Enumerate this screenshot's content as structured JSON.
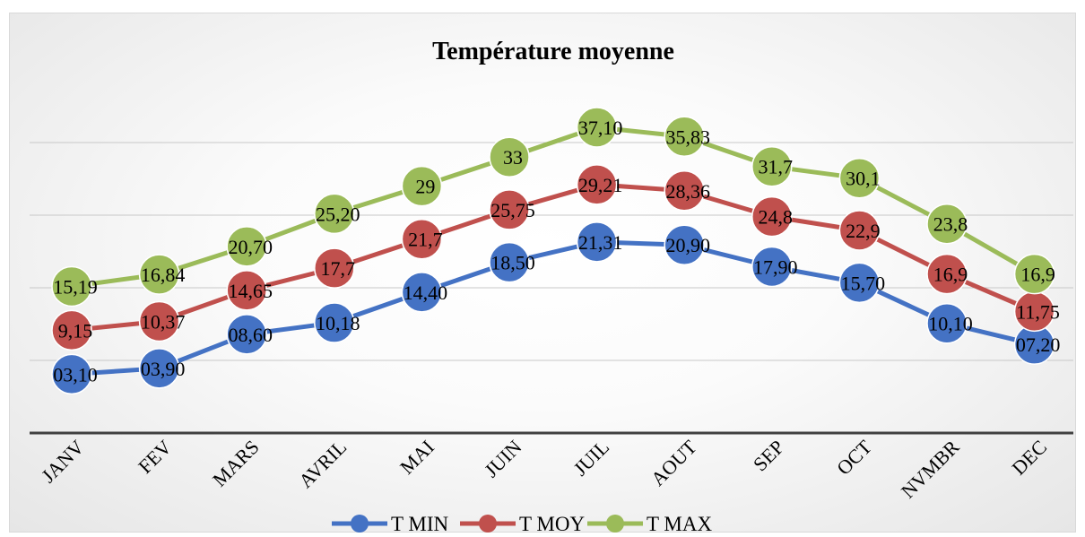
{
  "chart_data": {
    "type": "line",
    "title": "Température moyenne",
    "categories": [
      "JANV",
      "FEV",
      "MARS",
      "AVRIL",
      "MAI",
      "JUIN",
      "JUIL",
      "AOUT",
      "SEP",
      "OCT",
      "NVMBR",
      "DEC"
    ],
    "ylim": [
      -5,
      45
    ],
    "grid": true,
    "legend": "bottom",
    "series": [
      {
        "name": "T MIN",
        "color": "#4472c4",
        "values": [
          3.1,
          3.9,
          8.6,
          10.18,
          14.4,
          18.5,
          21.31,
          20.9,
          17.9,
          15.7,
          10.1,
          7.2
        ],
        "labels": [
          "03,10",
          "03,90",
          "08,60",
          "10,18",
          "14,40",
          "18,50",
          "21,31",
          "20,90",
          "17,90",
          "15,70",
          "10,10",
          "07,20"
        ]
      },
      {
        "name": "T MOY",
        "color": "#c0504d",
        "values": [
          9.15,
          10.37,
          14.65,
          17.7,
          21.7,
          25.75,
          29.21,
          28.36,
          24.8,
          22.9,
          16.9,
          11.75
        ],
        "labels": [
          "9,15",
          "10,37",
          "14,65",
          "17,7",
          "21,7",
          "25,75",
          "29,21",
          "28,36",
          "24,8",
          "22,9",
          "16,9",
          "11,75"
        ]
      },
      {
        "name": "T MAX",
        "color": "#9bbb59",
        "values": [
          15.19,
          16.84,
          20.7,
          25.2,
          29,
          33,
          37.1,
          35.83,
          31.7,
          30.1,
          23.8,
          16.9
        ],
        "labels": [
          "15,19",
          "16,84",
          "20,70",
          "25,20",
          "29",
          "33",
          "37,10",
          "35,83",
          "31,7",
          "30,1",
          "23,8",
          "16,9"
        ]
      }
    ]
  }
}
